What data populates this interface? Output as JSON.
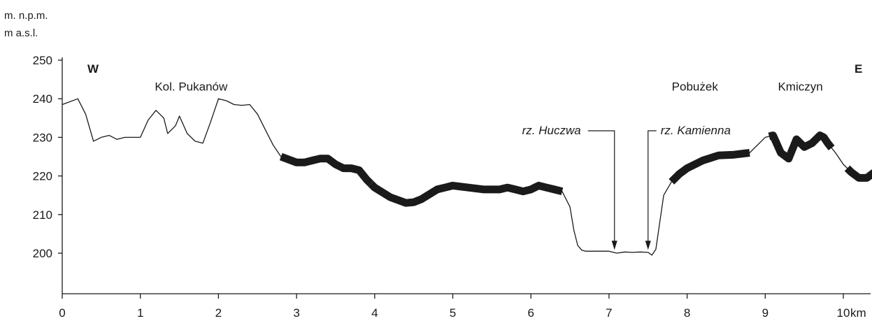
{
  "chart_data": {
    "type": "line",
    "unit_label_pl": "m. n.p.m.",
    "unit_label_en": "m a.s.l.",
    "x_unit": "km",
    "xlim": [
      0,
      10.4
    ],
    "ylim": [
      190,
      252
    ],
    "x_ticks": [
      0,
      1,
      2,
      3,
      4,
      5,
      6,
      7,
      8,
      9,
      10
    ],
    "x_tick_labels": [
      "0",
      "1",
      "2",
      "3",
      "4",
      "5",
      "6",
      "7",
      "8",
      "9",
      "10"
    ],
    "y_ticks": [
      200,
      210,
      220,
      230,
      240,
      250
    ],
    "y_tick_labels": [
      "200",
      "210",
      "220",
      "230",
      "240",
      "250"
    ],
    "direction_labels": {
      "west": "W",
      "east": "E"
    },
    "places": [
      {
        "name": "Kol. Pukanów",
        "x": 1.65,
        "y": 243
      },
      {
        "name": "Pobużek",
        "x": 8.1,
        "y": 243
      },
      {
        "name": "Kmiczyn",
        "x": 9.45,
        "y": 243
      }
    ],
    "rivers": [
      {
        "name": "rz. Huczwa",
        "x": 7.07,
        "y": 200.5
      },
      {
        "name": "rz. Kamienna",
        "x": 7.5,
        "y": 200.5
      }
    ],
    "profile": {
      "x": [
        0,
        0.2,
        0.3,
        0.4,
        0.5,
        0.6,
        0.7,
        0.8,
        0.9,
        1.0,
        1.1,
        1.2,
        1.3,
        1.35,
        1.45,
        1.5,
        1.6,
        1.7,
        1.8,
        1.9,
        2.0,
        2.1,
        2.2,
        2.3,
        2.4,
        2.5,
        2.6,
        2.7,
        2.8,
        3.0,
        3.1,
        3.2,
        3.3,
        3.4,
        3.5,
        3.6,
        3.7,
        3.8,
        3.9,
        4.0,
        4.2,
        4.4,
        4.5,
        4.6,
        4.8,
        5.0,
        5.2,
        5.4,
        5.6,
        5.7,
        5.8,
        5.9,
        6.0,
        6.1,
        6.2,
        6.3,
        6.4,
        6.5,
        6.55,
        6.6,
        6.65,
        6.7,
        6.8,
        6.9,
        7.0,
        7.1,
        7.2,
        7.3,
        7.4,
        7.5,
        7.55,
        7.6,
        7.65,
        7.7,
        7.8,
        7.9,
        8.0,
        8.2,
        8.4,
        8.6,
        8.8,
        9.0,
        9.1,
        9.2,
        9.3,
        9.4,
        9.5,
        9.6,
        9.7,
        9.75,
        9.8,
        9.9,
        10.0,
        10.1,
        10.2,
        10.3,
        10.4
      ],
      "y": [
        238.5,
        240,
        236,
        229,
        230,
        230.5,
        229.5,
        230,
        230,
        230,
        234.5,
        237,
        235,
        231,
        233,
        235.5,
        231,
        229,
        228.5,
        234,
        240,
        239.5,
        238.5,
        238.3,
        238.5,
        236,
        232,
        228,
        225,
        223.5,
        223.5,
        224,
        224.5,
        224.5,
        223,
        222,
        222,
        221.5,
        219,
        217,
        214.5,
        213,
        213.2,
        214,
        216.5,
        217.5,
        217,
        216.5,
        216.5,
        217,
        216.5,
        216,
        216.5,
        217.5,
        217,
        216.5,
        216,
        212,
        206,
        202,
        200.8,
        200.5,
        200.5,
        200.5,
        200.5,
        200,
        200.3,
        200.2,
        200.3,
        200.2,
        199.5,
        201,
        208,
        215,
        218.5,
        220.5,
        222,
        224,
        225.3,
        225.5,
        226,
        230,
        230.5,
        226,
        224.5,
        229.5,
        227.5,
        228.5,
        230.5,
        230,
        228.5,
        226,
        223,
        221,
        219.5,
        219.5,
        221
      ]
    },
    "thick_segments": [
      [
        2.8,
        3.95
      ],
      [
        3.95,
        6.4
      ],
      [
        7.8,
        8.8
      ],
      [
        9.05,
        9.85
      ],
      [
        10.05,
        10.4
      ]
    ],
    "grid": false
  }
}
